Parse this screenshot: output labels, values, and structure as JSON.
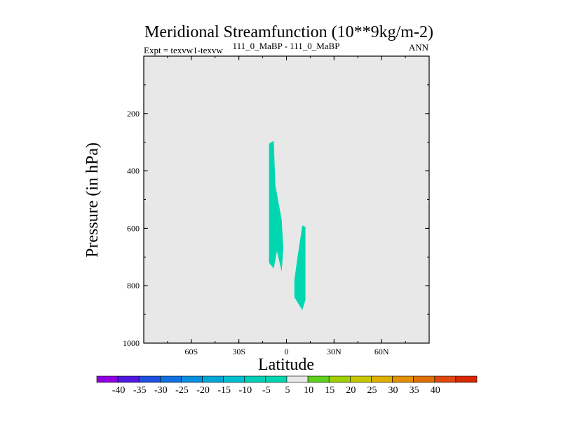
{
  "chart_data": {
    "type": "contour",
    "title": "Meridional Streamfunction (10**9kg/m-2)",
    "subtitle_left": "Expt = texvw1-texvw",
    "subtitle_center": "111_0_MaBP - 111_0_MaBP",
    "subtitle_right": "ANN",
    "xlabel": "Latitude",
    "ylabel": "Pressure (in hPa)",
    "xlim": [
      -90,
      90
    ],
    "ylim": [
      0,
      1000
    ],
    "y_inverted": true,
    "x_ticks": [
      {
        "value": -60,
        "label": "60S"
      },
      {
        "value": -30,
        "label": "30S"
      },
      {
        "value": 0,
        "label": "0"
      },
      {
        "value": 30,
        "label": "30N"
      },
      {
        "value": 60,
        "label": "60N"
      }
    ],
    "y_ticks": [
      {
        "value": 200,
        "label": "200"
      },
      {
        "value": 400,
        "label": "400"
      },
      {
        "value": 600,
        "label": "600"
      },
      {
        "value": 800,
        "label": "800"
      },
      {
        "value": 1000,
        "label": "1000"
      }
    ],
    "background_color": "#e8e8e8",
    "regions": [
      {
        "name": "region-1",
        "level_range": [
          -10,
          -5
        ],
        "color": "#00d7b0",
        "points": [
          [
            -11,
            305
          ],
          [
            -8,
            295
          ],
          [
            -7,
            450
          ],
          [
            -3,
            570
          ],
          [
            -2,
            670
          ],
          [
            -3,
            750
          ],
          [
            -6,
            680
          ],
          [
            -8,
            740
          ],
          [
            -11,
            720
          ],
          [
            -11,
            600
          ]
        ]
      },
      {
        "name": "region-2",
        "level_range": [
          -10,
          -5
        ],
        "color": "#00d7b0",
        "points": [
          [
            10,
            590
          ],
          [
            12,
            595
          ],
          [
            12,
            850
          ],
          [
            10,
            885
          ],
          [
            5,
            840
          ],
          [
            5,
            780
          ],
          [
            7,
            700
          ]
        ]
      }
    ],
    "colorbar": {
      "labels": [
        "-40",
        "-35",
        "-30",
        "-25",
        "-20",
        "-15",
        "-10",
        "-5",
        "5",
        "10",
        "15",
        "20",
        "25",
        "30",
        "35",
        "40"
      ],
      "colors": [
        "#8f00e0",
        "#5018e0",
        "#2050e0",
        "#1070e0",
        "#0890e0",
        "#00a8d8",
        "#00c0d0",
        "#00d0b8",
        "#00d7b0",
        "#e8e8e8",
        "#60d020",
        "#a0d000",
        "#c8c800",
        "#e0b000",
        "#e09000",
        "#e07000",
        "#e04810",
        "#d82800"
      ]
    }
  }
}
